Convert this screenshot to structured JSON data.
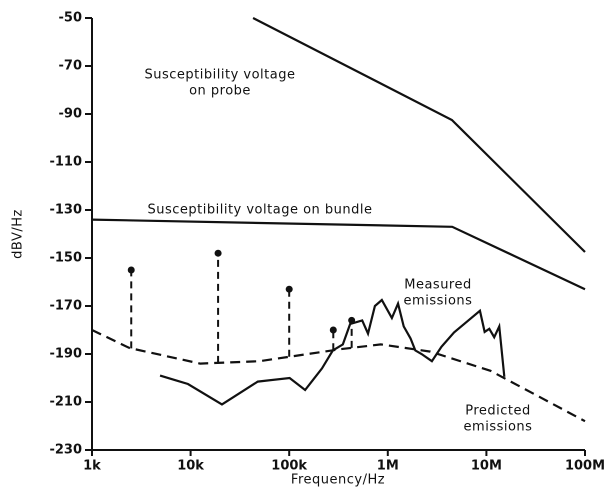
{
  "chart_data": {
    "type": "line",
    "xscale": "log",
    "ylabel": "dBV/Hz",
    "xlabel": "Frequency/Hz",
    "xlim": [
      1000,
      100000000
    ],
    "xticks": [
      {
        "value": 1000,
        "label": "1k"
      },
      {
        "value": 10000,
        "label": "10k"
      },
      {
        "value": 100000,
        "label": "100k"
      },
      {
        "value": 1000000,
        "label": "1M"
      },
      {
        "value": 10000000,
        "label": "10M"
      },
      {
        "value": 100000000,
        "label": "100M"
      }
    ],
    "ylim": [
      -230,
      -50
    ],
    "yticks": [
      -50,
      -70,
      -90,
      -110,
      -130,
      -150,
      -170,
      -190,
      -210,
      -230
    ],
    "series": [
      {
        "label_lines": [
          "Susceptibility voltage",
          "on probe"
        ],
        "color": "#111",
        "dash": false,
        "x": [
          43000,
          4470000,
          100000000
        ],
        "values": [
          -50,
          -92.5,
          -147.5
        ]
      },
      {
        "label_lines": [
          "Susceptibility voltage on bundle"
        ],
        "color": "#111",
        "dash": false,
        "x": [
          1000,
          4500000,
          100000000
        ],
        "values": [
          -134,
          -137,
          -163
        ]
      },
      {
        "label_lines": [
          "Measured",
          "emissions"
        ],
        "color": "#111",
        "dash": false,
        "x": [
          4900,
          9400,
          20800,
          48000,
          101000,
          145000,
          215000,
          277000,
          350000,
          415000,
          550000,
          630000,
          740000,
          870000,
          1100000,
          1270000,
          1450000,
          1700000,
          1900000,
          2200000,
          2800000,
          3500000,
          4700000,
          6800000,
          8600000,
          9600000,
          10700000,
          12000000,
          13500000,
          15200000
        ],
        "values": [
          -199,
          -202.5,
          -211,
          -201.5,
          -200,
          -205,
          -196,
          -188.5,
          -186,
          -177.5,
          -176,
          -181.5,
          -170,
          -167.5,
          -175,
          -169,
          -178.5,
          -183.5,
          -188.5,
          -190,
          -193,
          -187,
          -181,
          -175.5,
          -172,
          -180.8,
          -179.5,
          -183,
          -178.5,
          -199.5
        ]
      },
      {
        "label_lines": [
          "Predicted",
          "emissions"
        ],
        "color": "#111",
        "dash": true,
        "x": [
          1000,
          2400,
          12500,
          50000,
          330000,
          850000,
          2700000,
          11000000,
          35000000,
          100000000
        ],
        "values": [
          -180,
          -187.5,
          -194,
          -193,
          -188,
          -186,
          -189,
          -197,
          -208,
          -218
        ]
      },
      {
        "type": "stems",
        "color": "#111",
        "dash": true,
        "x": [
          2500,
          19000,
          100000,
          280000,
          430000
        ],
        "values": [
          -155,
          -148,
          -163,
          -180,
          -176
        ]
      }
    ]
  }
}
